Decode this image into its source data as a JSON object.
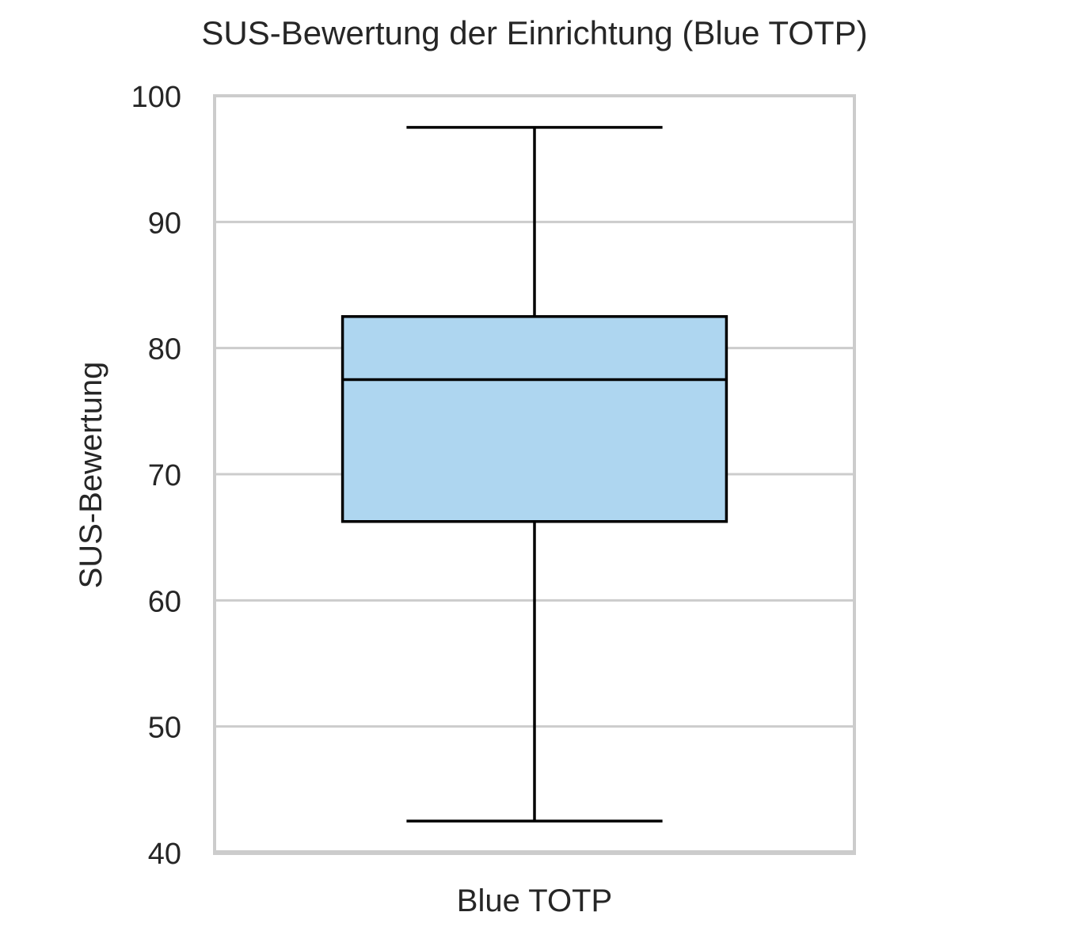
{
  "chart_data": {
    "type": "box",
    "title": "SUS-Bewertung der Einrichtung (Blue TOTP)",
    "xlabel": "",
    "ylabel": "SUS-Bewertung",
    "ylim": [
      40,
      100
    ],
    "yticks": [
      40,
      50,
      60,
      70,
      80,
      90,
      100
    ],
    "grid": true,
    "categories": [
      "Blue TOTP"
    ],
    "boxes": [
      {
        "category": "Blue TOTP",
        "whisker_low": 42.5,
        "q1": 66.25,
        "median": 77.5,
        "q3": 82.5,
        "whisker_high": 97.5,
        "color": "#aed6f0"
      }
    ]
  }
}
